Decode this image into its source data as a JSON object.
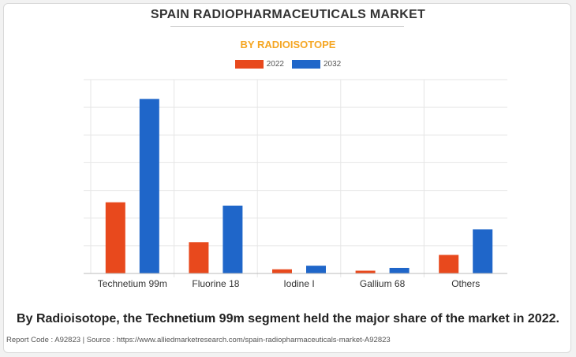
{
  "header": {
    "title": "SPAIN RADIOPHARMACEUTICALS MARKET",
    "subtitle": "BY RADIOISOTOPE"
  },
  "legend": {
    "items": [
      {
        "label": "2022",
        "color": "#e8491d"
      },
      {
        "label": "2032",
        "color": "#1f66c9"
      }
    ]
  },
  "chart_data": {
    "type": "bar",
    "categories": [
      "Technetium 99m",
      "Fluorine 18",
      "Iodine I",
      "Gallium 68",
      "Others"
    ],
    "series": [
      {
        "name": "2022",
        "color": "#e8491d",
        "values": [
          25.7,
          11.3,
          1.5,
          1.0,
          6.7
        ]
      },
      {
        "name": "2032",
        "color": "#1f66c9",
        "values": [
          63.0,
          24.5,
          2.8,
          2.0,
          15.9
        ]
      }
    ],
    "ylim": [
      0,
      70
    ],
    "grid": true,
    "legend_position": "top-center"
  },
  "caption": "By Radioisotope, the Technetium 99m segment held the major share of the market in 2022.",
  "footer": "Report Code : A92823  |  Source : https://www.alliedmarketresearch.com/spain-radiopharmaceuticals-market-A92823"
}
